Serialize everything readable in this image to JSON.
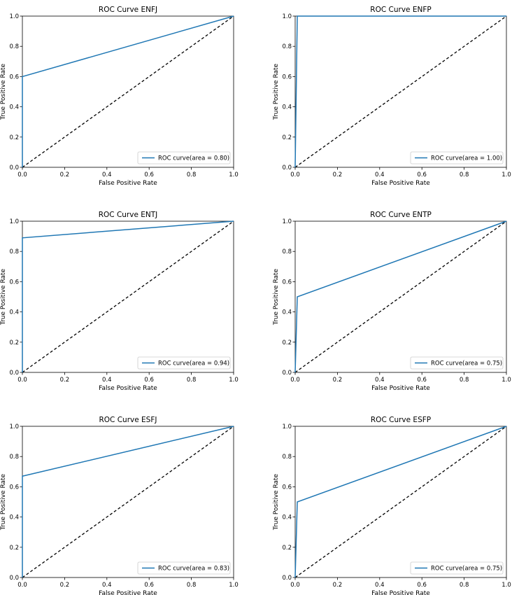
{
  "chart_data": [
    {
      "type": "line",
      "title": "ROC Curve ENFJ",
      "xlabel": "False Positive Rate",
      "ylabel": "True Positive Rate",
      "xlim": [
        0,
        1
      ],
      "ylim": [
        0,
        1
      ],
      "xticks": [
        "0.0",
        "0.2",
        "0.4",
        "0.6",
        "0.8",
        "1.0"
      ],
      "yticks": [
        "0.0",
        "0.2",
        "0.4",
        "0.6",
        "0.8",
        "1.0"
      ],
      "grid": false,
      "legend_position": "lower-right",
      "series": [
        {
          "name": "ROC curve(area = 0.80)",
          "x": [
            0,
            0,
            1
          ],
          "y": [
            0,
            0.6,
            1
          ],
          "color": "#1f77b4",
          "style": "solid"
        },
        {
          "x": [
            0,
            1
          ],
          "y": [
            0,
            1
          ],
          "color": "#000000",
          "style": "dashed"
        }
      ]
    },
    {
      "type": "line",
      "title": "ROC Curve ENFP",
      "xlabel": "False Positive Rate",
      "ylabel": "True Positive Rate",
      "xlim": [
        0,
        1
      ],
      "ylim": [
        0,
        1
      ],
      "xticks": [
        "0.0",
        "0.2",
        "0.4",
        "0.6",
        "0.8",
        "1.0"
      ],
      "yticks": [
        "0.0",
        "0.2",
        "0.4",
        "0.6",
        "0.8",
        "1.0"
      ],
      "grid": false,
      "legend_position": "lower-right",
      "series": [
        {
          "name": "ROC curve(area = 1.00)",
          "x": [
            0,
            0.01,
            1
          ],
          "y": [
            0,
            1,
            1
          ],
          "color": "#1f77b4",
          "style": "solid"
        },
        {
          "x": [
            0,
            1
          ],
          "y": [
            0,
            1
          ],
          "color": "#000000",
          "style": "dashed"
        }
      ]
    },
    {
      "type": "line",
      "title": "ROC Curve ENTJ",
      "xlabel": "False Positive Rate",
      "ylabel": "True Positive Rate",
      "xlim": [
        0,
        1
      ],
      "ylim": [
        0,
        1
      ],
      "xticks": [
        "0.0",
        "0.2",
        "0.4",
        "0.6",
        "0.8",
        "1.0"
      ],
      "yticks": [
        "0.0",
        "0.2",
        "0.4",
        "0.6",
        "0.8",
        "1.0"
      ],
      "grid": false,
      "legend_position": "lower-right",
      "series": [
        {
          "name": "ROC curve(area = 0.94)",
          "x": [
            0,
            0,
            1
          ],
          "y": [
            0,
            0.89,
            1
          ],
          "color": "#1f77b4",
          "style": "solid"
        },
        {
          "x": [
            0,
            1
          ],
          "y": [
            0,
            1
          ],
          "color": "#000000",
          "style": "dashed"
        }
      ]
    },
    {
      "type": "line",
      "title": "ROC Curve ENTP",
      "xlabel": "False Positive Rate",
      "ylabel": "True Positive Rate",
      "xlim": [
        0,
        1
      ],
      "ylim": [
        0,
        1
      ],
      "xticks": [
        "0.0",
        "0.2",
        "0.4",
        "0.6",
        "0.8",
        "1.0"
      ],
      "yticks": [
        "0.0",
        "0.2",
        "0.4",
        "0.6",
        "0.8",
        "1.0"
      ],
      "grid": false,
      "legend_position": "lower-right",
      "series": [
        {
          "name": "ROC curve(area = 0.75)",
          "x": [
            0,
            0.01,
            1
          ],
          "y": [
            0,
            0.5,
            1
          ],
          "color": "#1f77b4",
          "style": "solid"
        },
        {
          "x": [
            0,
            1
          ],
          "y": [
            0,
            1
          ],
          "color": "#000000",
          "style": "dashed"
        }
      ]
    },
    {
      "type": "line",
      "title": "ROC Curve ESFJ",
      "xlabel": "False Positive Rate",
      "ylabel": "True Positive Rate",
      "xlim": [
        0,
        1
      ],
      "ylim": [
        0,
        1
      ],
      "xticks": [
        "0.0",
        "0.2",
        "0.4",
        "0.6",
        "0.8",
        "1.0"
      ],
      "yticks": [
        "0.0",
        "0.2",
        "0.4",
        "0.6",
        "0.8",
        "1.0"
      ],
      "grid": false,
      "legend_position": "lower-right",
      "series": [
        {
          "name": "ROC curve(area = 0.83)",
          "x": [
            0,
            0,
            1
          ],
          "y": [
            0,
            0.67,
            1
          ],
          "color": "#1f77b4",
          "style": "solid"
        },
        {
          "x": [
            0,
            1
          ],
          "y": [
            0,
            1
          ],
          "color": "#000000",
          "style": "dashed"
        }
      ]
    },
    {
      "type": "line",
      "title": "ROC Curve ESFP",
      "xlabel": "False Positive Rate",
      "ylabel": "True Positive Rate",
      "xlim": [
        0,
        1
      ],
      "ylim": [
        0,
        1
      ],
      "xticks": [
        "0.0",
        "0.2",
        "0.4",
        "0.6",
        "0.8",
        "1.0"
      ],
      "yticks": [
        "0.0",
        "0.2",
        "0.4",
        "0.6",
        "0.8",
        "1.0"
      ],
      "grid": false,
      "legend_position": "lower-right",
      "series": [
        {
          "name": "ROC curve(area = 0.75)",
          "x": [
            0,
            0.01,
            1
          ],
          "y": [
            0,
            0.5,
            1
          ],
          "color": "#1f77b4",
          "style": "solid"
        },
        {
          "x": [
            0,
            1
          ],
          "y": [
            0,
            1
          ],
          "color": "#000000",
          "style": "dashed"
        }
      ]
    }
  ]
}
